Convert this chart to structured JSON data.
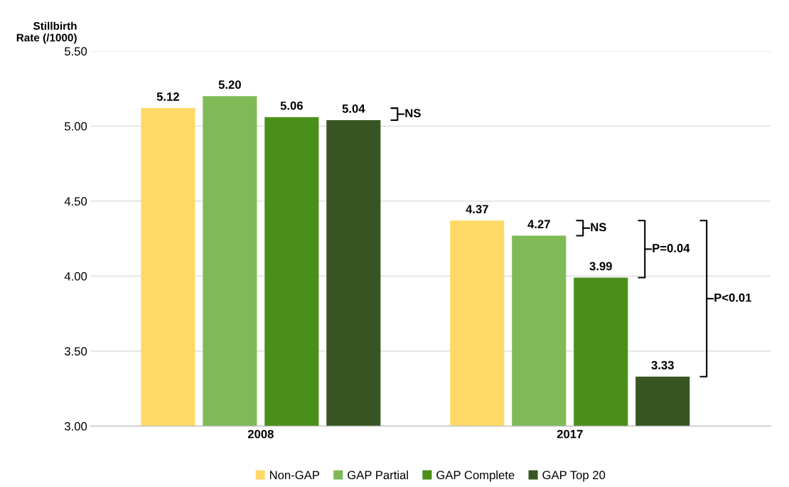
{
  "chart_data": {
    "type": "bar",
    "ylabel": "Stillbirth\nRate (/1000)",
    "categories": [
      "2008",
      "2017"
    ],
    "series": [
      {
        "name": "Non-GAP",
        "color": "#ffd966",
        "values": [
          5.12,
          4.37
        ],
        "value_labels": [
          "5.12",
          "4.37"
        ]
      },
      {
        "name": "GAP Partial",
        "color": "#7fba56",
        "values": [
          5.2,
          4.27
        ],
        "value_labels": [
          "5.20",
          "4.27"
        ]
      },
      {
        "name": "GAP Complete",
        "color": "#4a8f1a",
        "values": [
          5.06,
          3.99
        ],
        "value_labels": [
          "5.06",
          "3.99"
        ]
      },
      {
        "name": "GAP Top 20",
        "color": "#375623",
        "values": [
          5.04,
          3.33
        ],
        "value_labels": [
          "5.04",
          "3.33"
        ]
      }
    ],
    "ylim": [
      3.0,
      5.5
    ],
    "yticks": [
      {
        "value": 3.0,
        "label": "3.00"
      },
      {
        "value": 3.5,
        "label": "3.50"
      },
      {
        "value": 4.0,
        "label": "4.00"
      },
      {
        "value": 4.5,
        "label": "4.50"
      },
      {
        "value": 5.0,
        "label": "5.00"
      },
      {
        "value": 5.5,
        "label": "5.50"
      }
    ],
    "grid": "y",
    "legend": "bottom",
    "annotations": [
      "NS",
      "NS",
      "P=0.04",
      "P<0.01"
    ]
  }
}
